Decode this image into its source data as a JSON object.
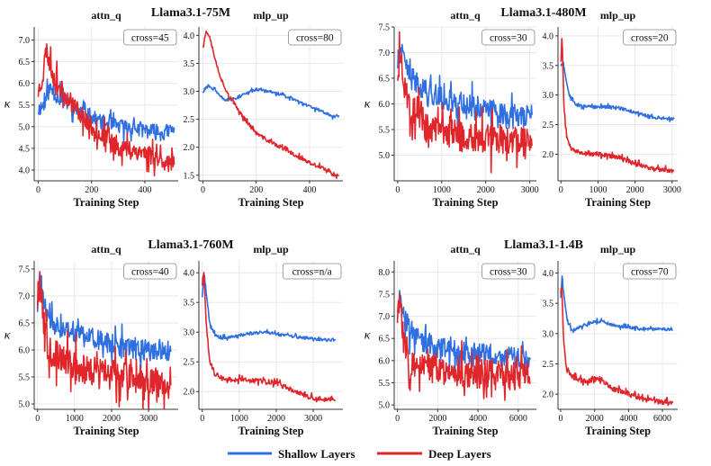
{
  "colors": {
    "shallow": "#2f6fe0",
    "deep": "#e0262b",
    "grid": "#e9e9e9",
    "axis": "#333333"
  },
  "legend": {
    "shallow_label": "Shallow Layers",
    "deep_label": "Deep Layers"
  },
  "chart_data": [
    {
      "model_title": "Llama3.1-75M",
      "panels": [
        {
          "type": "line",
          "title": "attn_q",
          "xlabel": "Training Step",
          "ylabel": "κ",
          "xlim": [
            -15,
            525
          ],
          "ylim": [
            3.75,
            7.3
          ],
          "xticks": [
            0,
            200,
            400
          ],
          "yticks": [
            4.0,
            4.5,
            5.0,
            5.5,
            6.0,
            6.5,
            7.0
          ],
          "cross_label": "cross=45",
          "series": [
            {
              "name": "Shallow Layers",
              "color": "#2f6fe0",
              "noise": 0.18,
              "seed": 11,
              "x": [
                0,
                20,
                45,
                70,
                100,
                140,
                180,
                220,
                260,
                300,
                340,
                380,
                420,
                460,
                500,
                510
              ],
              "y": [
                5.4,
                5.5,
                5.9,
                5.7,
                5.6,
                5.4,
                5.3,
                5.15,
                5.05,
                5.0,
                5.0,
                4.95,
                4.9,
                4.85,
                4.9,
                4.95
              ]
            },
            {
              "name": "Deep Layers",
              "color": "#e0262b",
              "noise": 0.22,
              "seed": 23,
              "x": [
                0,
                15,
                30,
                50,
                80,
                120,
                160,
                200,
                240,
                280,
                320,
                360,
                400,
                440,
                480,
                510
              ],
              "y": [
                5.8,
                6.1,
                6.8,
                6.3,
                5.9,
                5.6,
                5.3,
                5.0,
                4.8,
                4.6,
                4.5,
                4.45,
                4.4,
                4.3,
                4.2,
                4.1
              ]
            }
          ]
        },
        {
          "type": "line",
          "title": "mlp_up",
          "xlabel": "Training Step",
          "ylabel": "",
          "xlim": [
            -15,
            525
          ],
          "ylim": [
            1.4,
            4.15
          ],
          "xticks": [
            0,
            200,
            400
          ],
          "yticks": [
            1.5,
            2.0,
            2.5,
            3.0,
            3.5,
            4.0
          ],
          "cross_label": "cross=80",
          "series": [
            {
              "name": "Shallow Layers",
              "color": "#2f6fe0",
              "noise": 0.025,
              "seed": 31,
              "x": [
                0,
                20,
                50,
                80,
                110,
                150,
                200,
                250,
                300,
                350,
                400,
                450,
                490,
                510
              ],
              "y": [
                3.0,
                3.1,
                3.0,
                2.85,
                2.85,
                2.95,
                3.03,
                3.0,
                2.93,
                2.83,
                2.73,
                2.63,
                2.55,
                2.57
              ]
            },
            {
              "name": "Deep Layers",
              "color": "#e0262b",
              "noise": 0.035,
              "seed": 37,
              "x": [
                0,
                8,
                15,
                25,
                35,
                50,
                70,
                100,
                150,
                200,
                250,
                300,
                350,
                400,
                450,
                490,
                510
              ],
              "y": [
                3.8,
                4.0,
                4.05,
                4.0,
                3.8,
                3.5,
                3.2,
                2.9,
                2.55,
                2.25,
                2.1,
                1.98,
                1.85,
                1.72,
                1.62,
                1.52,
                1.5
              ]
            }
          ]
        }
      ]
    },
    {
      "model_title": "Llama3.1-480M",
      "panels": [
        {
          "type": "line",
          "title": "attn_q",
          "xlabel": "Training Step",
          "ylabel": "κ",
          "xlim": [
            -80,
            3150
          ],
          "ylim": [
            4.5,
            7.5
          ],
          "xticks": [
            0,
            1000,
            2000,
            3000
          ],
          "yticks": [
            5.0,
            5.5,
            6.0,
            6.5,
            7.0,
            7.5
          ],
          "cross_label": "cross=30",
          "series": [
            {
              "name": "Shallow Layers",
              "color": "#2f6fe0",
              "noise": 0.22,
              "seed": 41,
              "x": [
                0,
                50,
                150,
                300,
                600,
                1000,
                1500,
                2000,
                2500,
                3000,
                3050
              ],
              "y": [
                6.8,
                7.1,
                6.8,
                6.5,
                6.3,
                6.1,
                6.0,
                5.9,
                5.8,
                5.75,
                5.8
              ]
            },
            {
              "name": "Deep Layers",
              "color": "#e0262b",
              "noise": 0.3,
              "seed": 43,
              "x": [
                0,
                50,
                150,
                300,
                600,
                1000,
                1500,
                2000,
                2500,
                3000,
                3050
              ],
              "y": [
                6.6,
                7.0,
                6.4,
                5.9,
                5.6,
                5.45,
                5.35,
                5.3,
                5.3,
                5.2,
                5.2
              ]
            }
          ]
        },
        {
          "type": "line",
          "title": "mlp_up",
          "xlabel": "Training Step",
          "ylabel": "",
          "xlim": [
            -80,
            3150
          ],
          "ylim": [
            1.55,
            4.15
          ],
          "xticks": [
            0,
            1000,
            2000,
            3000
          ],
          "yticks": [
            2.0,
            2.5,
            3.0,
            3.5,
            4.0
          ],
          "cross_label": "cross=20",
          "series": [
            {
              "name": "Shallow Layers",
              "color": "#2f6fe0",
              "noise": 0.025,
              "seed": 51,
              "x": [
                0,
                60,
                150,
                250,
                400,
                600,
                900,
                1500,
                2000,
                2500,
                3000,
                3050
              ],
              "y": [
                3.5,
                3.55,
                3.2,
                2.95,
                2.85,
                2.8,
                2.8,
                2.8,
                2.7,
                2.62,
                2.6,
                2.6
              ]
            },
            {
              "name": "Deep Layers",
              "color": "#e0262b",
              "noise": 0.035,
              "seed": 53,
              "x": [
                0,
                30,
                80,
                150,
                250,
                400,
                700,
                1000,
                1500,
                2000,
                2500,
                3000,
                3050
              ],
              "y": [
                3.6,
                4.0,
                2.8,
                2.3,
                2.15,
                2.05,
                2.0,
                2.0,
                1.95,
                1.85,
                1.75,
                1.72,
                1.72
              ]
            }
          ]
        }
      ]
    },
    {
      "model_title": "Llama3.1-760M",
      "panels": [
        {
          "type": "line",
          "title": "attn_q",
          "xlabel": "Training Step",
          "ylabel": "κ",
          "xlim": [
            -90,
            3800
          ],
          "ylim": [
            4.9,
            7.65
          ],
          "xticks": [
            0,
            1000,
            2000,
            3000
          ],
          "yticks": [
            5.0,
            5.5,
            6.0,
            6.5,
            7.0,
            7.5
          ],
          "cross_label": "cross=40",
          "series": [
            {
              "name": "Shallow Layers",
              "color": "#2f6fe0",
              "noise": 0.2,
              "seed": 61,
              "x": [
                0,
                60,
                150,
                300,
                600,
                1000,
                1500,
                2000,
                2500,
                3000,
                3600
              ],
              "y": [
                6.8,
                7.4,
                7.0,
                6.5,
                6.4,
                6.3,
                6.2,
                6.1,
                6.0,
                6.0,
                6.0
              ]
            },
            {
              "name": "Deep Layers",
              "color": "#e0262b",
              "noise": 0.28,
              "seed": 67,
              "x": [
                0,
                60,
                150,
                300,
                600,
                1000,
                1500,
                2000,
                2500,
                3000,
                3600
              ],
              "y": [
                6.9,
                7.4,
                6.6,
                6.0,
                5.85,
                5.7,
                5.6,
                5.55,
                5.5,
                5.45,
                5.4
              ]
            }
          ]
        },
        {
          "type": "line",
          "title": "mlp_up",
          "xlabel": "Training Step",
          "ylabel": "",
          "xlim": [
            -90,
            3800
          ],
          "ylim": [
            1.7,
            4.2
          ],
          "xticks": [
            0,
            1000,
            2000,
            3000
          ],
          "yticks": [
            2.0,
            2.5,
            3.0,
            3.5,
            4.0
          ],
          "cross_label": "cross=n/a",
          "series": [
            {
              "name": "Shallow Layers",
              "color": "#2f6fe0",
              "noise": 0.025,
              "seed": 71,
              "x": [
                0,
                50,
                120,
                200,
                350,
                500,
                800,
                1200,
                1700,
                2200,
                2800,
                3300,
                3600
              ],
              "y": [
                3.6,
                4.0,
                3.6,
                3.15,
                2.95,
                2.9,
                2.92,
                2.97,
                3.0,
                2.95,
                2.9,
                2.87,
                2.87
              ]
            },
            {
              "name": "Deep Layers",
              "color": "#e0262b",
              "noise": 0.04,
              "seed": 73,
              "x": [
                0,
                40,
                100,
                200,
                350,
                600,
                1000,
                1500,
                2000,
                2500,
                3000,
                3600
              ],
              "y": [
                3.8,
                4.05,
                3.2,
                2.5,
                2.3,
                2.2,
                2.2,
                2.18,
                2.15,
                2.0,
                1.88,
                1.86
              ]
            }
          ]
        }
      ]
    },
    {
      "model_title": "Llama3.1-1.4B",
      "panels": [
        {
          "type": "line",
          "title": "attn_q",
          "xlabel": "Training Step",
          "ylabel": "κ",
          "xlim": [
            -160,
            6900
          ],
          "ylim": [
            4.9,
            8.25
          ],
          "xticks": [
            0,
            2000,
            4000,
            6000
          ],
          "yticks": [
            5.0,
            5.5,
            6.0,
            6.5,
            7.0,
            7.5,
            8.0
          ],
          "cross_label": "cross=30",
          "series": [
            {
              "name": "Shallow Layers",
              "color": "#2f6fe0",
              "noise": 0.25,
              "seed": 81,
              "x": [
                0,
                100,
                300,
                600,
                1000,
                2000,
                3000,
                4000,
                5000,
                6000,
                6600
              ],
              "y": [
                7.2,
                7.5,
                7.0,
                6.7,
                6.5,
                6.3,
                6.2,
                6.15,
                6.1,
                6.05,
                6.1
              ]
            },
            {
              "name": "Deep Layers",
              "color": "#e0262b",
              "noise": 0.33,
              "seed": 83,
              "x": [
                0,
                100,
                300,
                600,
                1000,
                2000,
                3000,
                4000,
                5000,
                6000,
                6600
              ],
              "y": [
                7.0,
                7.4,
                6.5,
                6.0,
                5.85,
                5.8,
                5.75,
                5.7,
                5.7,
                5.65,
                5.7
              ]
            }
          ]
        },
        {
          "type": "line",
          "title": "mlp_up",
          "xlabel": "Training Step",
          "ylabel": "",
          "xlim": [
            -160,
            6900
          ],
          "ylim": [
            1.75,
            4.2
          ],
          "xticks": [
            0,
            2000,
            4000,
            6000
          ],
          "yticks": [
            2.0,
            2.5,
            3.0,
            3.5,
            4.0
          ],
          "cross_label": "cross=70",
          "series": [
            {
              "name": "Shallow Layers",
              "color": "#2f6fe0",
              "noise": 0.025,
              "seed": 91,
              "x": [
                0,
                80,
                200,
                400,
                700,
                1000,
                1500,
                2000,
                2500,
                3000,
                4000,
                5000,
                6000,
                6600
              ],
              "y": [
                3.6,
                3.95,
                3.6,
                3.2,
                3.05,
                3.1,
                3.15,
                3.2,
                3.2,
                3.15,
                3.1,
                3.08,
                3.07,
                3.08
              ]
            },
            {
              "name": "Deep Layers",
              "color": "#e0262b",
              "noise": 0.04,
              "seed": 97,
              "x": [
                0,
                60,
                150,
                300,
                600,
                1000,
                1500,
                2000,
                2500,
                3000,
                4000,
                5000,
                6000,
                6600
              ],
              "y": [
                3.7,
                3.85,
                3.0,
                2.5,
                2.3,
                2.25,
                2.2,
                2.25,
                2.2,
                2.1,
                2.0,
                1.9,
                1.87,
                1.87
              ]
            }
          ]
        }
      ]
    }
  ]
}
